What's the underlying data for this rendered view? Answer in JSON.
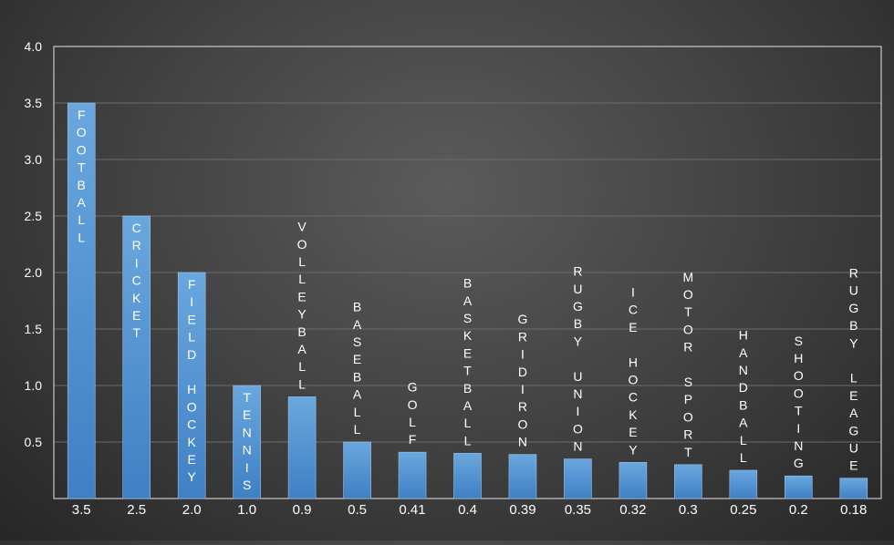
{
  "chart_data": {
    "type": "bar",
    "title": "",
    "xlabel": "",
    "ylabel": "",
    "ylim": [
      0,
      4.0
    ],
    "yticks": [
      "4.0",
      "3.5",
      "3.0",
      "2.5",
      "2.0",
      "1.5",
      "1.0",
      "0.5"
    ],
    "grid": true,
    "legend": "none",
    "bar_color": "#5b9bd5",
    "categories": [
      "FOOTBALL",
      "CRICKET",
      "FIELD HOCKEY",
      "TENNIS",
      "VOLLEYBALL",
      "BASEBALL",
      "GOLF",
      "BASKETBALL",
      "GRIDIRON",
      "RUGBY UNION",
      "ICE HOCKEY",
      "MOTOR SPORT",
      "HANDBALL",
      "SHOOTING",
      "RUGBY LEAGUE"
    ],
    "values": [
      3.5,
      2.5,
      2.0,
      1.0,
      0.9,
      0.5,
      0.41,
      0.4,
      0.39,
      0.35,
      0.32,
      0.3,
      0.25,
      0.2,
      0.18
    ],
    "value_labels": [
      "3.5",
      "2.5",
      "2.0",
      "1.0",
      "0.9",
      "0.5",
      "0.41",
      "0.4",
      "0.39",
      "0.35",
      "0.32",
      "0.3",
      "0.25",
      "0.2",
      "0.18"
    ]
  }
}
